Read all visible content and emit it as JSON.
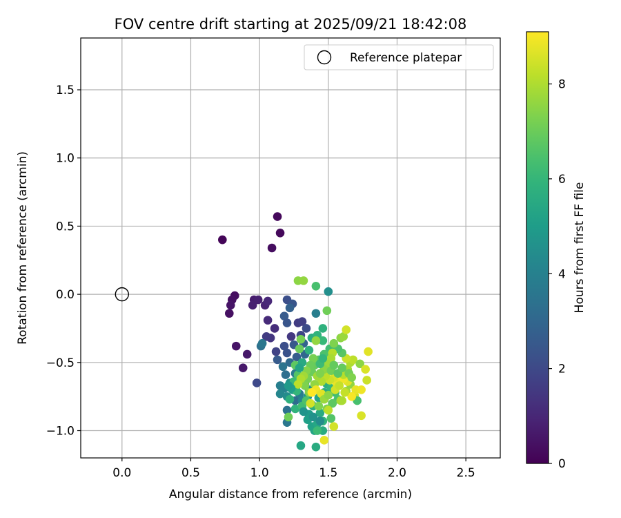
{
  "chart_data": {
    "type": "scatter",
    "title": "FOV centre drift starting at 2025/09/21 18:42:08",
    "xlabel": "Angular distance from reference (arcmin)",
    "ylabel": "Rotation from reference (arcmin)",
    "xlim": [
      -0.3,
      2.75
    ],
    "ylim": [
      -1.2,
      1.88
    ],
    "xticks": [
      0.0,
      0.5,
      1.0,
      1.5,
      2.0,
      2.5
    ],
    "xtick_labels": [
      "0.0",
      "0.5",
      "1.0",
      "1.5",
      "2.0",
      "2.5"
    ],
    "yticks": [
      -1.0,
      -0.5,
      0.0,
      0.5,
      1.0,
      1.5
    ],
    "ytick_labels": [
      "−1.0",
      "−0.5",
      "0.0",
      "0.5",
      "1.0",
      "1.5"
    ],
    "grid": true,
    "legend": {
      "position": "top-right",
      "entries": [
        "Reference platepar"
      ]
    },
    "reference_point": {
      "x": 0.0,
      "y": 0.0,
      "label": "Reference platepar"
    },
    "colorbar": {
      "label": "Hours from first FF file",
      "colormap": "viridis",
      "range": [
        0,
        9.1
      ],
      "ticks": [
        0,
        2,
        4,
        6,
        8
      ],
      "tick_labels": [
        "0",
        "2",
        "4",
        "6",
        "8"
      ]
    },
    "points": [
      {
        "x": 0.73,
        "y": 0.4,
        "h": 0.1
      },
      {
        "x": 1.13,
        "y": 0.57,
        "h": 0.2
      },
      {
        "x": 1.15,
        "y": 0.45,
        "h": 0.2
      },
      {
        "x": 1.09,
        "y": 0.34,
        "h": 0.3
      },
      {
        "x": 0.82,
        "y": -0.01,
        "h": 0.3
      },
      {
        "x": 0.8,
        "y": -0.04,
        "h": 0.4
      },
      {
        "x": 0.79,
        "y": -0.08,
        "h": 0.5
      },
      {
        "x": 0.78,
        "y": -0.14,
        "h": 0.4
      },
      {
        "x": 0.83,
        "y": -0.38,
        "h": 0.5
      },
      {
        "x": 0.88,
        "y": -0.54,
        "h": 0.6
      },
      {
        "x": 0.91,
        "y": -0.44,
        "h": 0.6
      },
      {
        "x": 0.96,
        "y": -0.04,
        "h": 0.7
      },
      {
        "x": 0.95,
        "y": -0.08,
        "h": 0.8
      },
      {
        "x": 0.99,
        "y": -0.04,
        "h": 0.8
      },
      {
        "x": 1.04,
        "y": -0.08,
        "h": 0.9
      },
      {
        "x": 1.06,
        "y": -0.05,
        "h": 1.0
      },
      {
        "x": 1.06,
        "y": -0.19,
        "h": 1.1
      },
      {
        "x": 1.11,
        "y": -0.25,
        "h": 1.2
      },
      {
        "x": 1.08,
        "y": -0.32,
        "h": 1.4
      },
      {
        "x": 1.05,
        "y": -0.31,
        "h": 1.6
      },
      {
        "x": 1.12,
        "y": -0.42,
        "h": 1.8
      },
      {
        "x": 0.98,
        "y": -0.65,
        "h": 2.0
      },
      {
        "x": 1.01,
        "y": -0.38,
        "h": 3.4
      },
      {
        "x": 1.02,
        "y": -0.36,
        "h": 3.6
      },
      {
        "x": 1.13,
        "y": -0.48,
        "h": 2.6
      },
      {
        "x": 1.2,
        "y": -0.04,
        "h": 2.2
      },
      {
        "x": 1.24,
        "y": -0.07,
        "h": 2.4
      },
      {
        "x": 1.22,
        "y": -0.1,
        "h": 2.8
      },
      {
        "x": 1.18,
        "y": -0.16,
        "h": 2.6
      },
      {
        "x": 1.2,
        "y": -0.21,
        "h": 2.4
      },
      {
        "x": 1.23,
        "y": -0.31,
        "h": 1.5
      },
      {
        "x": 1.28,
        "y": -0.21,
        "h": 1.6
      },
      {
        "x": 1.31,
        "y": -0.2,
        "h": 1.7
      },
      {
        "x": 1.3,
        "y": -0.3,
        "h": 1.9
      },
      {
        "x": 1.34,
        "y": -0.25,
        "h": 2.1
      },
      {
        "x": 1.18,
        "y": -0.38,
        "h": 2.2
      },
      {
        "x": 1.2,
        "y": -0.43,
        "h": 2.3
      },
      {
        "x": 1.25,
        "y": -0.37,
        "h": 2.5
      },
      {
        "x": 1.27,
        "y": -0.46,
        "h": 2.7
      },
      {
        "x": 1.32,
        "y": -0.36,
        "h": 2.9
      },
      {
        "x": 1.33,
        "y": -0.44,
        "h": 3.0
      },
      {
        "x": 1.22,
        "y": -0.5,
        "h": 3.1
      },
      {
        "x": 1.19,
        "y": -0.59,
        "h": 3.3
      },
      {
        "x": 1.17,
        "y": -0.53,
        "h": 3.5
      },
      {
        "x": 1.26,
        "y": -0.58,
        "h": 3.7
      },
      {
        "x": 1.15,
        "y": -0.67,
        "h": 3.9
      },
      {
        "x": 1.18,
        "y": -0.69,
        "h": 4.0
      },
      {
        "x": 1.15,
        "y": -0.73,
        "h": 4.2
      },
      {
        "x": 1.2,
        "y": -0.75,
        "h": 4.4
      },
      {
        "x": 1.22,
        "y": -0.65,
        "h": 4.6
      },
      {
        "x": 1.24,
        "y": -0.7,
        "h": 4.8
      },
      {
        "x": 1.26,
        "y": -0.78,
        "h": 3.2
      },
      {
        "x": 1.2,
        "y": -0.85,
        "h": 3.4
      },
      {
        "x": 1.2,
        "y": -0.94,
        "h": 3.6
      },
      {
        "x": 1.29,
        "y": -0.73,
        "h": 3.8
      },
      {
        "x": 1.31,
        "y": -0.78,
        "h": 4.1
      },
      {
        "x": 1.33,
        "y": -0.66,
        "h": 4.3
      },
      {
        "x": 1.36,
        "y": -0.7,
        "h": 4.5
      },
      {
        "x": 1.35,
        "y": -0.75,
        "h": 4.7
      },
      {
        "x": 1.38,
        "y": -0.81,
        "h": 4.9
      },
      {
        "x": 1.36,
        "y": -0.88,
        "h": 5.0
      },
      {
        "x": 1.35,
        "y": -0.92,
        "h": 5.1
      },
      {
        "x": 1.38,
        "y": -0.97,
        "h": 5.2
      },
      {
        "x": 1.4,
        "y": -1.0,
        "h": 5.3
      },
      {
        "x": 1.42,
        "y": -0.95,
        "h": 5.4
      },
      {
        "x": 1.44,
        "y": -0.87,
        "h": 5.5
      },
      {
        "x": 1.46,
        "y": -1.0,
        "h": 5.6
      },
      {
        "x": 1.41,
        "y": -0.14,
        "h": 3.9
      },
      {
        "x": 1.5,
        "y": 0.02,
        "h": 4.5
      },
      {
        "x": 1.41,
        "y": 0.06,
        "h": 6.4
      },
      {
        "x": 1.28,
        "y": 0.1,
        "h": 7.5
      },
      {
        "x": 1.32,
        "y": 0.1,
        "h": 7.6
      },
      {
        "x": 1.46,
        "y": -0.25,
        "h": 5.8
      },
      {
        "x": 1.49,
        "y": -0.12,
        "h": 7.1
      },
      {
        "x": 1.38,
        "y": -0.32,
        "h": 5.6
      },
      {
        "x": 1.42,
        "y": -0.3,
        "h": 5.9
      },
      {
        "x": 1.46,
        "y": -0.34,
        "h": 6.1
      },
      {
        "x": 1.51,
        "y": -0.4,
        "h": 6.3
      },
      {
        "x": 1.47,
        "y": -0.44,
        "h": 6.5
      },
      {
        "x": 1.43,
        "y": -0.48,
        "h": 6.7
      },
      {
        "x": 1.4,
        "y": -0.52,
        "h": 6.9
      },
      {
        "x": 1.38,
        "y": -0.57,
        "h": 7.0
      },
      {
        "x": 1.35,
        "y": -0.62,
        "h": 7.2
      },
      {
        "x": 1.33,
        "y": -0.67,
        "h": 7.3
      },
      {
        "x": 1.36,
        "y": -0.72,
        "h": 7.4
      },
      {
        "x": 1.3,
        "y": -0.33,
        "h": 7.2
      },
      {
        "x": 1.29,
        "y": -0.4,
        "h": 7.0
      },
      {
        "x": 1.26,
        "y": -0.52,
        "h": 6.8
      },
      {
        "x": 1.28,
        "y": -0.59,
        "h": 6.6
      },
      {
        "x": 1.25,
        "y": -0.64,
        "h": 6.2
      },
      {
        "x": 1.27,
        "y": -0.71,
        "h": 6.0
      },
      {
        "x": 1.22,
        "y": -0.77,
        "h": 5.8
      },
      {
        "x": 1.26,
        "y": -0.84,
        "h": 5.9
      },
      {
        "x": 1.21,
        "y": -0.9,
        "h": 7.1
      },
      {
        "x": 1.31,
        "y": -0.82,
        "h": 6.3
      },
      {
        "x": 1.34,
        "y": -0.78,
        "h": 6.5
      },
      {
        "x": 1.39,
        "y": -0.82,
        "h": 5.7
      },
      {
        "x": 1.43,
        "y": -0.76,
        "h": 5.3
      },
      {
        "x": 1.47,
        "y": -0.72,
        "h": 5.5
      },
      {
        "x": 1.49,
        "y": -0.66,
        "h": 5.7
      },
      {
        "x": 1.52,
        "y": -0.69,
        "h": 6.0
      },
      {
        "x": 1.55,
        "y": -0.72,
        "h": 6.2
      },
      {
        "x": 1.57,
        "y": -0.77,
        "h": 6.4
      },
      {
        "x": 1.53,
        "y": -0.8,
        "h": 6.8
      },
      {
        "x": 1.49,
        "y": -0.84,
        "h": 7.3
      },
      {
        "x": 1.52,
        "y": -0.91,
        "h": 6.6
      },
      {
        "x": 1.46,
        "y": -0.93,
        "h": 5.9
      },
      {
        "x": 1.42,
        "y": -1.0,
        "h": 6.2
      },
      {
        "x": 1.41,
        "y": -1.12,
        "h": 5.6
      },
      {
        "x": 1.3,
        "y": -1.11,
        "h": 5.4
      },
      {
        "x": 1.47,
        "y": -1.07,
        "h": 8.8
      },
      {
        "x": 1.54,
        "y": -0.97,
        "h": 8.5
      },
      {
        "x": 1.5,
        "y": -0.85,
        "h": 8.2
      },
      {
        "x": 1.6,
        "y": -0.78,
        "h": 8.0
      },
      {
        "x": 1.63,
        "y": -0.71,
        "h": 7.8
      },
      {
        "x": 1.66,
        "y": -0.66,
        "h": 7.6
      },
      {
        "x": 1.69,
        "y": -0.74,
        "h": 8.4
      },
      {
        "x": 1.71,
        "y": -0.78,
        "h": 6.4
      },
      {
        "x": 1.74,
        "y": -0.89,
        "h": 8.6
      },
      {
        "x": 1.7,
        "y": -0.7,
        "h": 8.8
      },
      {
        "x": 1.67,
        "y": -0.75,
        "h": 9.0
      },
      {
        "x": 1.64,
        "y": -0.64,
        "h": 8.7
      },
      {
        "x": 1.61,
        "y": -0.62,
        "h": 8.9
      },
      {
        "x": 1.58,
        "y": -0.6,
        "h": 9.0
      },
      {
        "x": 1.56,
        "y": -0.65,
        "h": 8.8
      },
      {
        "x": 1.54,
        "y": -0.61,
        "h": 8.6
      },
      {
        "x": 1.51,
        "y": -0.63,
        "h": 8.4
      },
      {
        "x": 1.48,
        "y": -0.6,
        "h": 8.2
      },
      {
        "x": 1.45,
        "y": -0.64,
        "h": 8.0
      },
      {
        "x": 1.42,
        "y": -0.6,
        "h": 7.8
      },
      {
        "x": 1.4,
        "y": -0.66,
        "h": 7.6
      },
      {
        "x": 1.41,
        "y": -0.7,
        "h": 8.9
      },
      {
        "x": 1.45,
        "y": -0.73,
        "h": 8.7
      },
      {
        "x": 1.55,
        "y": -0.7,
        "h": 8.5
      },
      {
        "x": 1.58,
        "y": -0.67,
        "h": 8.3
      },
      {
        "x": 1.61,
        "y": -0.59,
        "h": 8.1
      },
      {
        "x": 1.64,
        "y": -0.55,
        "h": 7.9
      },
      {
        "x": 1.66,
        "y": -0.5,
        "h": 8.0
      },
      {
        "x": 1.68,
        "y": -0.48,
        "h": 8.2
      },
      {
        "x": 1.63,
        "y": -0.47,
        "h": 8.4
      },
      {
        "x": 1.6,
        "y": -0.43,
        "h": 6.7
      },
      {
        "x": 1.57,
        "y": -0.4,
        "h": 6.5
      },
      {
        "x": 1.54,
        "y": -0.36,
        "h": 7.3
      },
      {
        "x": 1.59,
        "y": -0.32,
        "h": 7.5
      },
      {
        "x": 1.61,
        "y": -0.31,
        "h": 7.7
      },
      {
        "x": 1.63,
        "y": -0.26,
        "h": 8.5
      },
      {
        "x": 1.53,
        "y": -0.43,
        "h": 8.1
      },
      {
        "x": 1.52,
        "y": -0.47,
        "h": 7.9
      },
      {
        "x": 1.49,
        "y": -0.51,
        "h": 7.7
      },
      {
        "x": 1.47,
        "y": -0.55,
        "h": 7.5
      },
      {
        "x": 1.44,
        "y": -0.58,
        "h": 7.3
      },
      {
        "x": 1.41,
        "y": -0.34,
        "h": 7.6
      },
      {
        "x": 1.39,
        "y": -0.47,
        "h": 7.2
      },
      {
        "x": 1.37,
        "y": -0.52,
        "h": 7.0
      },
      {
        "x": 1.34,
        "y": -0.56,
        "h": 7.4
      },
      {
        "x": 1.32,
        "y": -0.6,
        "h": 7.8
      },
      {
        "x": 1.3,
        "y": -0.62,
        "h": 8.0
      },
      {
        "x": 1.28,
        "y": -0.66,
        "h": 8.2
      },
      {
        "x": 1.52,
        "y": -0.56,
        "h": 7.1
      },
      {
        "x": 1.54,
        "y": -0.52,
        "h": 6.9
      },
      {
        "x": 1.57,
        "y": -0.58,
        "h": 6.7
      },
      {
        "x": 1.6,
        "y": -0.54,
        "h": 6.9
      },
      {
        "x": 1.65,
        "y": -0.58,
        "h": 7.1
      },
      {
        "x": 1.67,
        "y": -0.61,
        "h": 7.3
      },
      {
        "x": 1.73,
        "y": -0.51,
        "h": 7.5
      },
      {
        "x": 1.77,
        "y": -0.55,
        "h": 8.6
      },
      {
        "x": 1.78,
        "y": -0.63,
        "h": 8.4
      },
      {
        "x": 1.79,
        "y": -0.42,
        "h": 8.7
      },
      {
        "x": 1.74,
        "y": -0.7,
        "h": 8.9
      },
      {
        "x": 1.62,
        "y": -0.72,
        "h": 8.3
      },
      {
        "x": 1.59,
        "y": -0.78,
        "h": 7.9
      },
      {
        "x": 1.38,
        "y": -0.72,
        "h": 9.1
      },
      {
        "x": 1.37,
        "y": -0.8,
        "h": 8.5
      },
      {
        "x": 1.47,
        "y": -0.77,
        "h": 7.7
      },
      {
        "x": 1.5,
        "y": -0.74,
        "h": 7.5
      },
      {
        "x": 1.43,
        "y": -0.82,
        "h": 7.3
      },
      {
        "x": 1.44,
        "y": -0.51,
        "h": 6.2
      },
      {
        "x": 1.46,
        "y": -0.47,
        "h": 6.0
      },
      {
        "x": 1.36,
        "y": -0.41,
        "h": 5.8
      },
      {
        "x": 1.31,
        "y": -0.5,
        "h": 5.5
      },
      {
        "x": 1.29,
        "y": -0.54,
        "h": 5.3
      },
      {
        "x": 1.23,
        "y": -0.69,
        "h": 5.1
      },
      {
        "x": 1.21,
        "y": -0.67,
        "h": 4.9
      },
      {
        "x": 1.32,
        "y": -0.86,
        "h": 4.7
      },
      {
        "x": 1.39,
        "y": -0.9,
        "h": 4.6
      },
      {
        "x": 1.44,
        "y": -0.93,
        "h": 4.4
      }
    ]
  }
}
